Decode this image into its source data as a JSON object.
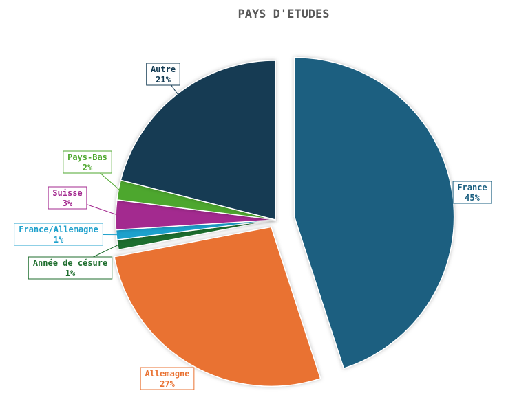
{
  "chart_data": {
    "type": "pie",
    "title": "PAYS D'ETUDES",
    "exploded": true,
    "slices": [
      {
        "label": "France",
        "value": 45,
        "display": "45%",
        "color": "#1a5f80"
      },
      {
        "label": "Allemagne",
        "value": 27,
        "display": "27%",
        "color": "#e97232"
      },
      {
        "label": "Année de césure",
        "value": 1,
        "display": "1%",
        "color": "#1f6e2e"
      },
      {
        "label": "France/Allemagne",
        "value": 1,
        "display": "1%",
        "color": "#1fa1cc"
      },
      {
        "label": "Suisse",
        "value": 3,
        "display": "3%",
        "color": "#a3298f"
      },
      {
        "label": "Pays-Bas",
        "value": 2,
        "display": "2%",
        "color": "#4ea72e"
      },
      {
        "label": "Autre",
        "value": 21,
        "display": "21%",
        "color": "#123a52"
      }
    ]
  }
}
